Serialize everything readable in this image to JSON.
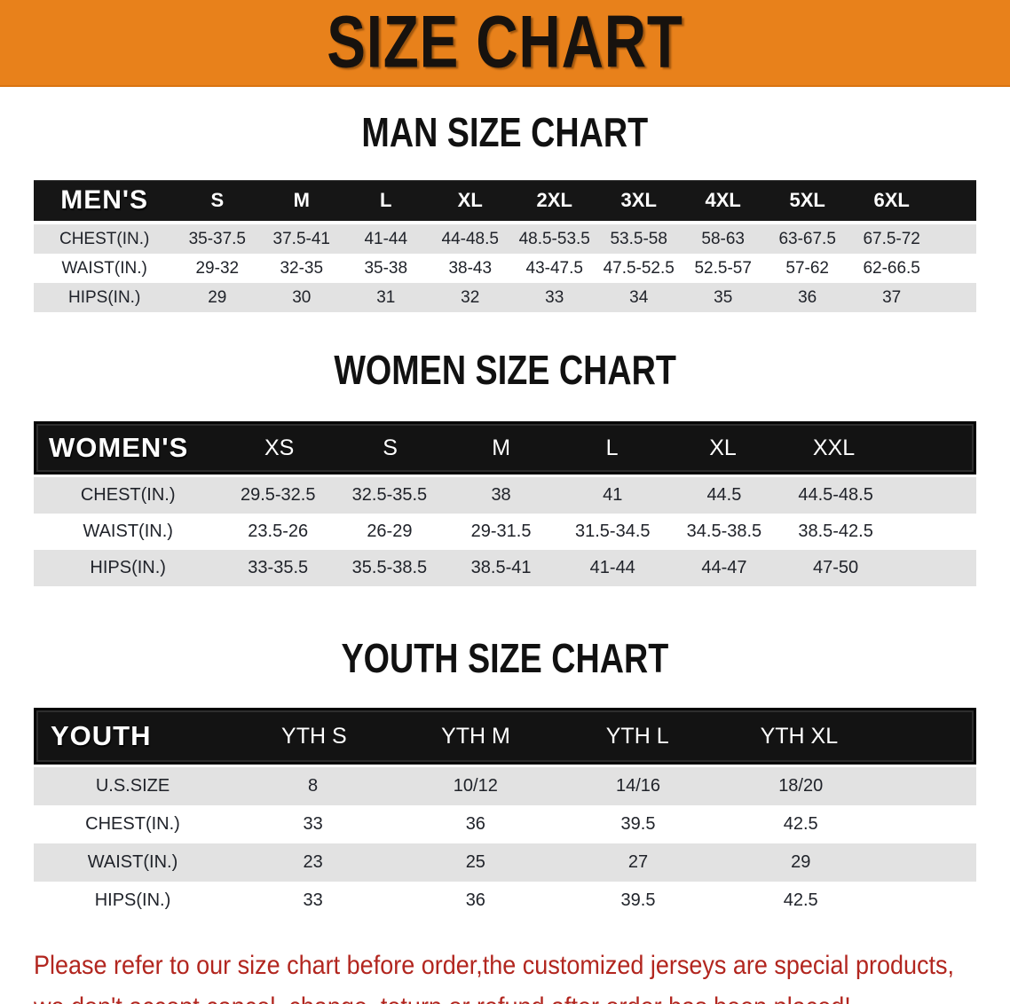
{
  "banner": {
    "title": "SIZE CHART",
    "bg_color": "#E8811B",
    "text_color": "#17120e"
  },
  "sections": [
    {
      "heading": "MAN SIZE CHART",
      "table": {
        "header_label": "MEN'S",
        "columns": [
          "S",
          "M",
          "L",
          "XL",
          "2XL",
          "3XL",
          "4XL",
          "5XL",
          "6XL"
        ],
        "rows": [
          {
            "label": "CHEST(IN.)",
            "values": [
              "35-37.5",
              "37.5-41",
              "41-44",
              "44-48.5",
              "48.5-53.5",
              "53.5-58",
              "58-63",
              "63-67.5",
              "67.5-72"
            ]
          },
          {
            "label": "WAIST(IN.)",
            "values": [
              "29-32",
              "32-35",
              "35-38",
              "38-43",
              "43-47.5",
              "47.5-52.5",
              "52.5-57",
              "57-62",
              "62-66.5"
            ]
          },
          {
            "label": "HIPS(IN.)",
            "values": [
              "29",
              "30",
              "31",
              "32",
              "33",
              "34",
              "35",
              "36",
              "37"
            ]
          }
        ]
      }
    },
    {
      "heading": "WOMEN SIZE CHART",
      "table": {
        "header_label": "WOMEN'S",
        "columns": [
          "XS",
          "S",
          "M",
          "L",
          "XL",
          "XXL"
        ],
        "rows": [
          {
            "label": "CHEST(IN.)",
            "values": [
              "29.5-32.5",
              "32.5-35.5",
              "38",
              "41",
              "44.5",
              "44.5-48.5"
            ]
          },
          {
            "label": "WAIST(IN.)",
            "values": [
              "23.5-26",
              "26-29",
              "29-31.5",
              "31.5-34.5",
              "34.5-38.5",
              "38.5-42.5"
            ]
          },
          {
            "label": "HIPS(IN.)",
            "values": [
              "33-35.5",
              "35.5-38.5",
              "38.5-41",
              "41-44",
              "44-47",
              "47-50"
            ]
          }
        ]
      }
    },
    {
      "heading": "YOUTH SIZE CHART",
      "table": {
        "header_label": "YOUTH",
        "columns": [
          "YTH S",
          "YTH M",
          "YTH L",
          "YTH XL"
        ],
        "rows": [
          {
            "label": "U.S.SIZE",
            "values": [
              "8",
              "10/12",
              "14/16",
              "18/20"
            ]
          },
          {
            "label": "CHEST(IN.)",
            "values": [
              "33",
              "36",
              "39.5",
              "42.5"
            ]
          },
          {
            "label": "WAIST(IN.)",
            "values": [
              "23",
              "25",
              "27",
              "29"
            ]
          },
          {
            "label": "HIPS(IN.)",
            "values": [
              "33",
              "36",
              "39.5",
              "42.5"
            ]
          }
        ]
      }
    }
  ],
  "footer": {
    "line1": "Please refer to our size chart before order,the customized jerseys are special products,",
    "line2": "we don't accept cancel, change, teturn or refund after order has been placed!",
    "text_color": "#B2261F"
  },
  "colors": {
    "accent_orange": "#E8811B",
    "header_black": "#161616",
    "stripe_gray": "#E2E2E2",
    "note_red": "#B2261F"
  }
}
